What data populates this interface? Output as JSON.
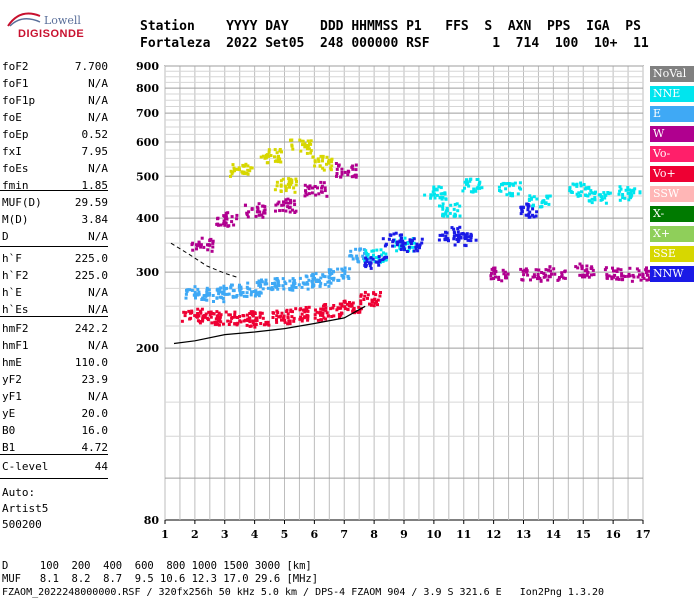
{
  "logo": {
    "line1": "Lowell",
    "line2": "DIGISONDE"
  },
  "header": {
    "cols": [
      "Station",
      "YYYY",
      "DAY",
      "DDD",
      "HHMMSS",
      "P1",
      "FFS",
      "S",
      "AXN",
      "PPS",
      "IGA",
      "PS"
    ],
    "line1": "Station    YYYY DAY    DDD HHMMSS P1   FFS  S  AXN  PPS  IGA  PS",
    "line2": "Fortaleza  2022 Set05  248 000000 RSF        1  714  100  10+  11"
  },
  "params": {
    "g1": [
      {
        "n": "foF2",
        "v": "7.700"
      },
      {
        "n": "foF1",
        "v": "N/A"
      },
      {
        "n": "foF1p",
        "v": "N/A"
      },
      {
        "n": "foE",
        "v": "N/A"
      },
      {
        "n": "foEp",
        "v": "0.52"
      },
      {
        "n": "fxI",
        "v": "7.95"
      },
      {
        "n": "foEs",
        "v": "N/A"
      },
      {
        "n": "fmin",
        "v": "1.85"
      }
    ],
    "g2": [
      {
        "n": "MUF(D)",
        "v": "29.59"
      },
      {
        "n": "M(D)",
        "v": "3.84"
      },
      {
        "n": "D",
        "v": "N/A"
      }
    ],
    "g3": [
      {
        "n": "h`F",
        "v": "225.0"
      },
      {
        "n": "h`F2",
        "v": "225.0"
      },
      {
        "n": "h`E",
        "v": "N/A"
      },
      {
        "n": "h`Es",
        "v": "N/A"
      }
    ],
    "g4": [
      {
        "n": "hmF2",
        "v": "242.2"
      },
      {
        "n": "hmF1",
        "v": "N/A"
      },
      {
        "n": "hmE",
        "v": "110.0"
      },
      {
        "n": "yF2",
        "v": "23.9"
      },
      {
        "n": "yF1",
        "v": "N/A"
      },
      {
        "n": "yE",
        "v": "20.0"
      },
      {
        "n": "B0",
        "v": "16.0"
      },
      {
        "n": "B1",
        "v": "4.72"
      }
    ],
    "g5": [
      {
        "n": "C-level",
        "v": "44"
      }
    ]
  },
  "notes": {
    "auto": "Auto:",
    "artist": "Artist5",
    "code": "500200"
  },
  "legend": [
    {
      "label": "NoVal",
      "bg": "#808080",
      "fg": "#ffffff"
    },
    {
      "label": "NNE",
      "bg": "#00e5ee",
      "fg": "#ffffff"
    },
    {
      "label": "E",
      "bg": "#3fa9f5",
      "fg": "#ffffff"
    },
    {
      "label": "W",
      "bg": "#b0008f",
      "fg": "#ffffff"
    },
    {
      "label": "Vo-",
      "bg": "#ff1f6a",
      "fg": "#ffffff"
    },
    {
      "label": "Vo+",
      "bg": "#ee0033",
      "fg": "#ffffff"
    },
    {
      "label": "SSW",
      "bg": "#ffb6b6",
      "fg": "#ffffff"
    },
    {
      "label": "X-",
      "bg": "#007a00",
      "fg": "#ffffff"
    },
    {
      "label": "X+",
      "bg": "#8fcf5a",
      "fg": "#ffffff"
    },
    {
      "label": "SSE",
      "bg": "#d7d700",
      "fg": "#ffffff"
    },
    {
      "label": "NNW",
      "bg": "#1a1ae6",
      "fg": "#ffffff"
    }
  ],
  "footer": {
    "d_row": "D     100  200  400  600  800 1000 1500 3000 [km]",
    "muf_row": "MUF   8.1  8.2  8.7  9.5 10.6 12.3 17.0 29.6 [MHz]",
    "file_row": "FZAOM_2022248000000.RSF / 320fx256h 50 kHz 5.0 km / DPS-4 FZAOM 904 / 3.9 S 321.6 E   Ion2Png 1.3.20"
  },
  "chart_data": {
    "type": "scatter",
    "title": "",
    "xlabel": "",
    "ylabel": "",
    "xlim": [
      1,
      17
    ],
    "ylim": [
      80,
      900
    ],
    "x_ticks": [
      "1",
      "2",
      "3",
      "4",
      "5",
      "6",
      "7",
      "8",
      "9",
      "10",
      "11",
      "12",
      "13",
      "14",
      "15",
      "16",
      "17"
    ],
    "y_ticks": [
      "80",
      "200",
      "300",
      "400",
      "500",
      "600",
      "700",
      "800",
      "900"
    ],
    "y_scale": "log",
    "grid": true,
    "legend_position": "right",
    "series": [
      {
        "name": "Vo+",
        "color": "#ee0033",
        "points": [
          [
            1.9,
            240
          ],
          [
            2.4,
            238
          ],
          [
            3.0,
            236
          ],
          [
            3.6,
            234
          ],
          [
            4.2,
            236
          ],
          [
            4.8,
            238
          ],
          [
            5.4,
            240
          ],
          [
            6.0,
            242
          ],
          [
            6.6,
            246
          ],
          [
            7.2,
            250
          ],
          [
            7.8,
            262
          ]
        ]
      },
      {
        "name": "E",
        "color": "#3fa9f5",
        "points": [
          [
            2.0,
            270
          ],
          [
            2.6,
            268
          ],
          [
            3.2,
            272
          ],
          [
            3.8,
            275
          ],
          [
            4.4,
            280
          ],
          [
            5.0,
            282
          ],
          [
            5.6,
            286
          ],
          [
            6.2,
            290
          ],
          [
            6.8,
            300
          ],
          [
            7.5,
            330
          ]
        ]
      },
      {
        "name": "W",
        "color": "#b0008f",
        "points": [
          [
            2.2,
            350
          ],
          [
            3.0,
            400
          ],
          [
            4.0,
            420
          ],
          [
            5.0,
            430
          ],
          [
            6.0,
            470
          ],
          [
            7.0,
            520
          ],
          [
            12.2,
            298
          ],
          [
            13.2,
            298
          ],
          [
            14.0,
            300
          ],
          [
            15.0,
            305
          ],
          [
            16.0,
            300
          ],
          [
            16.8,
            298
          ]
        ]
      },
      {
        "name": "NNE",
        "color": "#00e5ee",
        "points": [
          [
            8.0,
            330
          ],
          [
            9.0,
            350
          ],
          [
            10.0,
            460
          ],
          [
            10.5,
            420
          ],
          [
            11.2,
            480
          ],
          [
            12.5,
            470
          ],
          [
            13.5,
            440
          ],
          [
            14.8,
            470
          ],
          [
            15.5,
            450
          ],
          [
            16.5,
            460
          ]
        ]
      },
      {
        "name": "NNW",
        "color": "#1a1ae6",
        "points": [
          [
            8.0,
            320
          ],
          [
            8.6,
            360
          ],
          [
            9.2,
            350
          ],
          [
            10.5,
            370
          ],
          [
            11.0,
            360
          ],
          [
            13.2,
            420
          ]
        ]
      },
      {
        "name": "SSE",
        "color": "#d7d700",
        "points": [
          [
            3.5,
            520
          ],
          [
            4.5,
            560
          ],
          [
            5.5,
            590
          ],
          [
            6.2,
            540
          ],
          [
            5.0,
            480
          ]
        ]
      }
    ],
    "profile_line": [
      [
        1.3,
        205
      ],
      [
        2.0,
        208
      ],
      [
        3.0,
        215
      ],
      [
        4.0,
        218
      ],
      [
        5.0,
        222
      ],
      [
        6.0,
        228
      ],
      [
        7.0,
        235
      ],
      [
        7.7,
        250
      ]
    ],
    "dashed_line": [
      [
        1.2,
        350
      ],
      [
        1.8,
        330
      ],
      [
        2.4,
        310
      ],
      [
        3.0,
        298
      ],
      [
        3.4,
        292
      ]
    ]
  }
}
